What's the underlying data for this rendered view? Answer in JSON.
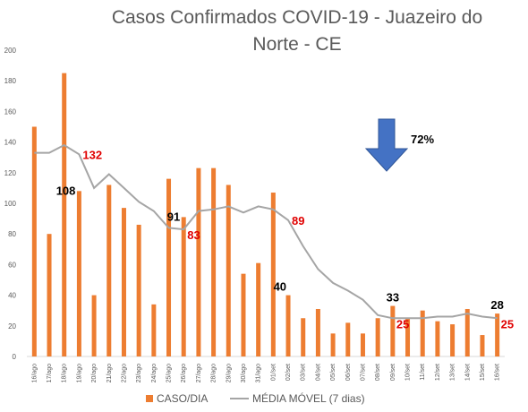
{
  "chart_data": {
    "type": "bar",
    "title_lines": [
      "Casos Confirmados COVID-19 - Juazeiro do",
      "Norte - CE"
    ],
    "categories": [
      "16/ago",
      "17/ago",
      "18/ago",
      "19/ago",
      "20/ago",
      "21/ago",
      "22/ago",
      "23/ago",
      "24/ago",
      "25/ago",
      "26/ago",
      "27/ago",
      "28/ago",
      "29/ago",
      "30/ago",
      "31/ago",
      "01/set",
      "02/set",
      "03/set",
      "04/set",
      "05/set",
      "06/set",
      "07/set",
      "08/set",
      "09/set",
      "10/set",
      "11/set",
      "12/set",
      "13/set",
      "14/set",
      "15/set",
      "16/set"
    ],
    "series": [
      {
        "name": "CASO/DIA",
        "kind": "bar",
        "color": "#ED7D31",
        "values": [
          150,
          80,
          185,
          108,
          40,
          112,
          97,
          86,
          34,
          116,
          91,
          123,
          123,
          112,
          54,
          61,
          107,
          40,
          25,
          31,
          15,
          22,
          15,
          25,
          33,
          25,
          30,
          23,
          21,
          31,
          14,
          28
        ]
      },
      {
        "name": "MÉDIA MÓVEL (7 dias)",
        "kind": "line",
        "color": "#A5A5A5",
        "values": [
          133,
          133,
          138,
          132,
          110,
          119,
          110,
          101,
          95,
          84,
          83,
          95,
          96,
          98,
          94,
          98,
          96,
          89,
          72,
          57,
          48,
          43,
          37,
          27,
          25,
          25,
          25,
          26,
          26,
          28,
          26,
          25
        ]
      }
    ],
    "ylim": [
      0,
      200
    ],
    "yticks": [
      0,
      20,
      40,
      60,
      80,
      100,
      120,
      140,
      160,
      180,
      200
    ],
    "grid": false,
    "legend_position": "bottom",
    "annotations": [
      {
        "text": "132",
        "index": 3,
        "value": 132,
        "color": "#E00000",
        "anchor": "right"
      },
      {
        "text": "108",
        "index": 3,
        "value": 108,
        "color": "#000000",
        "anchor": "left"
      },
      {
        "text": "91",
        "index": 10,
        "value": 91,
        "color": "#000000",
        "anchor": "left"
      },
      {
        "text": "83",
        "index": 10,
        "value": 83,
        "color": "#E00000",
        "anchor": "right-below"
      },
      {
        "text": "89",
        "index": 17,
        "value": 89,
        "color": "#E00000",
        "anchor": "right"
      },
      {
        "text": "40",
        "index": 17,
        "value": 40,
        "color": "#000000",
        "anchor": "left-above"
      },
      {
        "text": "33",
        "index": 24,
        "value": 33,
        "color": "#000000",
        "anchor": "above"
      },
      {
        "text": "25",
        "index": 24,
        "value": 25,
        "color": "#E00000",
        "anchor": "right-below"
      },
      {
        "text": "28",
        "index": 31,
        "value": 28,
        "color": "#000000",
        "anchor": "above"
      },
      {
        "text": "25",
        "index": 31,
        "value": 25,
        "color": "#E00000",
        "anchor": "right-below"
      }
    ],
    "callout": {
      "text": "72%",
      "arrow_color": "#4472C4",
      "arrow_direction": "down"
    }
  }
}
